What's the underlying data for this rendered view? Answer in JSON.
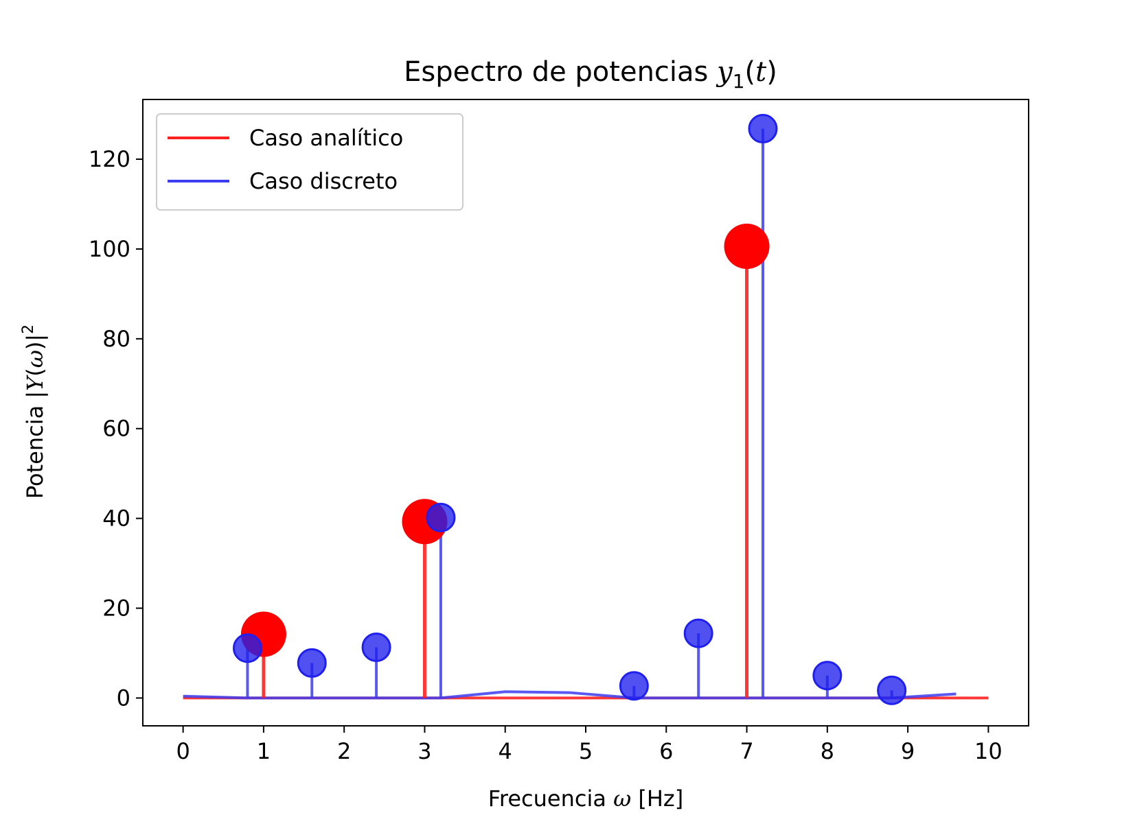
{
  "chart_data": {
    "type": "line",
    "title_parts": {
      "prefix": "Espectro de potencias ",
      "var": "y",
      "sub": "1",
      "paren_open": "(",
      "arg": "t",
      "paren_close": ")"
    },
    "xlabel_parts": {
      "prefix": "Frecuencia ",
      "var": "ω",
      "suffix": " [Hz]"
    },
    "ylabel_parts": {
      "prefix": "Potencia |",
      "var": "Y",
      "open": "(",
      "arg": "ω",
      "close": ")|",
      "sup": "2"
    },
    "xlim": [
      -0.5,
      10.5
    ],
    "ylim": [
      -6.2,
      133.3
    ],
    "x_ticks": [
      0,
      1,
      2,
      3,
      4,
      5,
      6,
      7,
      8,
      9,
      10
    ],
    "x_tick_labels": [
      "0",
      "1",
      "2",
      "3",
      "4",
      "5",
      "6",
      "7",
      "8",
      "9",
      "10"
    ],
    "y_ticks": [
      0,
      20,
      40,
      60,
      80,
      100,
      120
    ],
    "y_tick_labels": [
      "0",
      "20",
      "40",
      "60",
      "80",
      "100",
      "120"
    ],
    "legend_position": "top-left",
    "series": [
      {
        "name": "Caso analítico",
        "color": "#ff2020",
        "marker_color": "#ff0000",
        "line_points": {
          "x": [
            0,
            10
          ],
          "y": [
            0,
            0
          ]
        },
        "stems": {
          "x": [
            1,
            3,
            7
          ],
          "y": [
            14.2,
            39.3,
            100.6
          ]
        },
        "marker_style": "large-opaque"
      },
      {
        "name": "Caso discreto",
        "color": "#3c3cf0",
        "marker_color": "#2020ee",
        "line_points": {
          "x": [
            0,
            0.8,
            1.6,
            2.4,
            3.2,
            4.0,
            4.8,
            5.6,
            6.4,
            7.2,
            8.0,
            8.8,
            9.6
          ],
          "y": [
            0.4,
            0.0,
            0.0,
            0.0,
            0.0,
            1.4,
            1.2,
            0.0,
            0.0,
            0.0,
            0.0,
            0.0,
            0.9
          ]
        },
        "stems": {
          "x": [
            0.8,
            1.6,
            2.4,
            3.2,
            5.6,
            6.4,
            7.2,
            8.0,
            8.8
          ],
          "y": [
            11.1,
            7.8,
            11.3,
            40.2,
            2.7,
            14.4,
            126.8,
            5.0,
            1.7
          ]
        },
        "marker_style": "small-translucent"
      }
    ]
  }
}
